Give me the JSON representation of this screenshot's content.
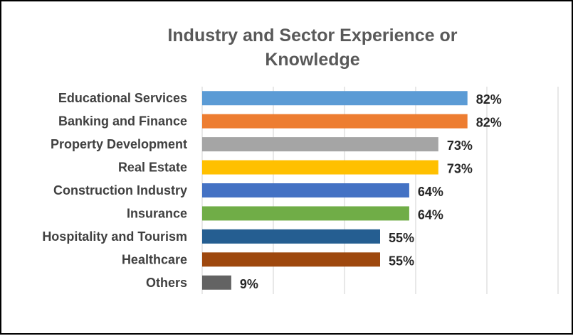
{
  "chart_data": {
    "type": "bar",
    "orientation": "horizontal",
    "title": "Industry and Sector Experience or Knowledge",
    "title_lines": [
      "Industry and Sector Experience or",
      "Knowledge"
    ],
    "categories": [
      "Educational Services",
      "Banking and Finance",
      "Property Development",
      "Real Estate",
      "Construction Industry",
      "Insurance",
      "Hospitality and Tourism",
      "Healthcare",
      "Others"
    ],
    "values": [
      82,
      82,
      73,
      73,
      64,
      64,
      55,
      55,
      9
    ],
    "value_labels": [
      "82%",
      "82%",
      "73%",
      "73%",
      "64%",
      "64%",
      "55%",
      "55%",
      "9%"
    ],
    "colors": [
      "#5B9BD5",
      "#ED7D31",
      "#A5A5A5",
      "#FFC000",
      "#4472C4",
      "#70AD47",
      "#255E91",
      "#9E480E",
      "#636363"
    ],
    "xlim": [
      0,
      110
    ],
    "grid": true,
    "legend": false,
    "value_unit": "%"
  }
}
